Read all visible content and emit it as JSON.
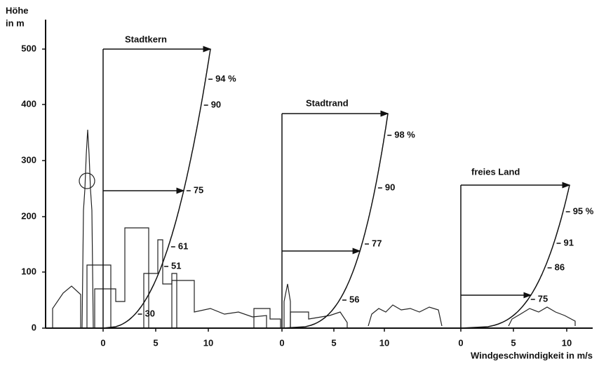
{
  "y_axis": {
    "label": [
      "Höhe",
      "in m"
    ],
    "ticks": [
      "0",
      "100",
      "200",
      "300",
      "400",
      "500"
    ]
  },
  "x_axis_label": "Windgeschwindigkeit in m/s",
  "profiles": [
    {
      "title": "Stadtkern",
      "x_ticks": [
        "0",
        "5",
        "10"
      ],
      "labels": [
        "94 %",
        "90",
        "75",
        "61",
        "51",
        "30"
      ]
    },
    {
      "title": "Stadtrand",
      "x_ticks": [
        "0",
        "5",
        "10"
      ],
      "labels": [
        "98 %",
        "90",
        "77",
        "56"
      ]
    },
    {
      "title": "freies Land",
      "x_ticks": [
        "0",
        "5",
        "10"
      ],
      "labels": [
        "95 %",
        "91",
        "86",
        "75"
      ]
    }
  ]
}
